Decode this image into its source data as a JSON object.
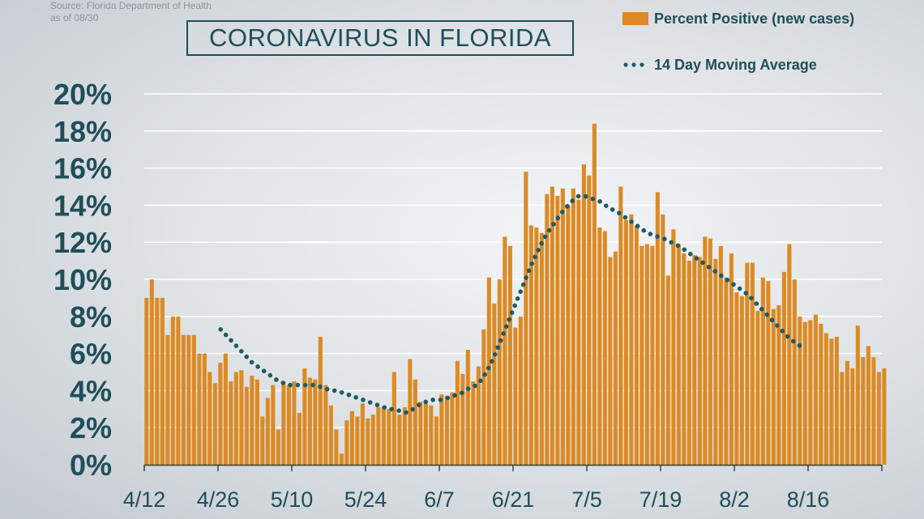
{
  "source_line1": "Source: Florida Department of Health",
  "source_line2": "as of 08/30",
  "colors": {
    "bar": "#dc8a25",
    "line": "#1f5a66",
    "text": "#1f4e5a",
    "grid": "#ffffff"
  },
  "chart_data": {
    "type": "bar",
    "title": "CORONAVIRUS IN FLORIDA",
    "xlabel": "",
    "ylabel": "",
    "ylim": [
      0,
      20
    ],
    "y_ticks": [
      0,
      2,
      4,
      6,
      8,
      10,
      12,
      14,
      16,
      18,
      20
    ],
    "y_tick_labels": [
      "0%",
      "2%",
      "4%",
      "6%",
      "8%",
      "10%",
      "12%",
      "14%",
      "16%",
      "18%",
      "20%"
    ],
    "x_tick_labels": [
      "4/12",
      "4/26",
      "5/10",
      "5/24",
      "6/7",
      "6/21",
      "7/5",
      "7/19",
      "8/2",
      "8/16"
    ],
    "x_tick_day_index": [
      0,
      14,
      28,
      42,
      56,
      70,
      84,
      98,
      112,
      126
    ],
    "legend_position": "top-right",
    "series": [
      {
        "name": "Percent Positive (new cases)",
        "type": "bar",
        "start_date": "4/12",
        "values": [
          9.0,
          10.0,
          9.0,
          9.0,
          7.0,
          8.0,
          8.0,
          7.0,
          7.0,
          7.0,
          6.0,
          6.0,
          5.0,
          4.4,
          5.5,
          6.0,
          4.5,
          5.0,
          5.1,
          4.2,
          4.8,
          4.6,
          2.6,
          3.6,
          4.3,
          1.9,
          4.5,
          4.3,
          4.5,
          2.8,
          5.2,
          4.7,
          4.6,
          6.9,
          4.3,
          3.2,
          1.9,
          0.6,
          2.4,
          2.9,
          2.6,
          3.3,
          2.5,
          2.7,
          3.1,
          3.1,
          3.0,
          5.0,
          2.7,
          3.1,
          5.7,
          4.6,
          3.4,
          3.3,
          3.2,
          2.6,
          3.8,
          3.7,
          3.9,
          5.6,
          4.9,
          6.2,
          4.5,
          5.3,
          7.3,
          10.1,
          8.7,
          10.0,
          12.3,
          11.8,
          7.4,
          8.0,
          15.8,
          12.9,
          12.8,
          12.5,
          14.6,
          15.0,
          14.5,
          14.9,
          14.0,
          14.9,
          14.3,
          16.2,
          15.6,
          18.4,
          12.8,
          12.6,
          11.2,
          11.5,
          15.0,
          13.2,
          13.5,
          12.9,
          11.8,
          11.9,
          11.8,
          14.7,
          13.5,
          10.2,
          12.7,
          11.9,
          11.4,
          11.0,
          11.3,
          11.2,
          12.3,
          12.2,
          11.1,
          11.8,
          10.1,
          11.4,
          9.3,
          9.1,
          10.9,
          10.9,
          8.3,
          10.1,
          9.9,
          8.4,
          8.6,
          10.4,
          11.9,
          10.0,
          8.0,
          7.7,
          7.8,
          8.1,
          7.6,
          7.1,
          6.8,
          6.9,
          5.0,
          5.6,
          5.2,
          7.5,
          5.8,
          6.4,
          5.8,
          5.0,
          5.2
        ]
      },
      {
        "name": "14 Day Moving Average",
        "type": "dotted-line",
        "start_index": 14,
        "values": [
          7.3,
          7.0,
          6.7,
          6.4,
          6.1,
          5.8,
          5.5,
          5.3,
          5.1,
          4.9,
          4.7,
          4.5,
          4.4,
          4.3,
          4.3,
          4.3,
          4.3,
          4.3,
          4.3,
          4.2,
          4.1,
          4.0,
          4.0,
          3.9,
          3.8,
          3.7,
          3.6,
          3.5,
          3.4,
          3.3,
          3.2,
          3.1,
          3.0,
          3.0,
          2.9,
          2.8,
          2.9,
          3.1,
          3.3,
          3.4,
          3.5,
          3.5,
          3.5,
          3.6,
          3.7,
          3.8,
          3.9,
          4.1,
          4.2,
          4.4,
          4.8,
          5.3,
          5.9,
          6.6,
          7.3,
          8.0,
          8.7,
          9.4,
          10.1,
          10.8,
          11.4,
          12.0,
          12.5,
          12.9,
          13.3,
          13.7,
          14.0,
          14.3,
          14.5,
          14.5,
          14.4,
          14.3,
          14.2,
          14.0,
          13.8,
          13.7,
          13.5,
          13.3,
          13.1,
          12.9,
          12.7,
          12.5,
          12.4,
          12.3,
          12.2,
          12.1,
          11.9,
          11.8,
          11.6,
          11.4,
          11.2,
          11.0,
          10.8,
          10.6,
          10.4,
          10.2,
          10.0,
          9.8,
          9.6,
          9.4,
          9.2,
          8.9,
          8.6,
          8.3,
          8.0,
          7.7,
          7.4,
          7.1,
          6.8,
          6.6,
          6.4
        ]
      }
    ]
  }
}
